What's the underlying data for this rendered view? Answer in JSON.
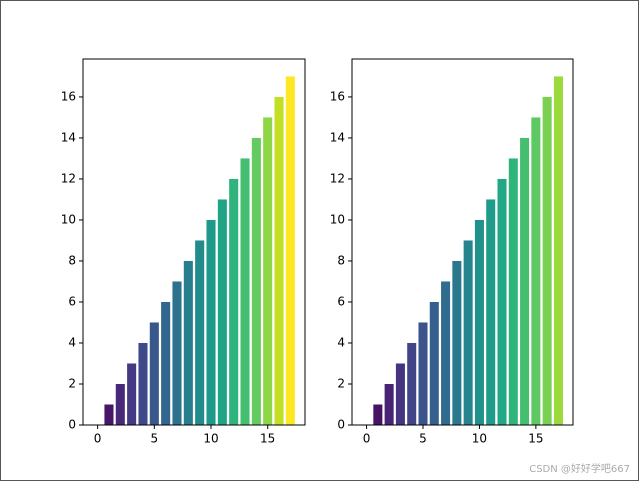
{
  "chart_data": [
    {
      "type": "bar",
      "x": [
        0,
        1,
        2,
        3,
        4,
        5,
        6,
        7,
        8,
        9,
        10,
        11,
        12,
        13,
        14,
        15,
        16,
        17
      ],
      "values": [
        0,
        1,
        2,
        3,
        4,
        5,
        6,
        7,
        8,
        9,
        10,
        11,
        12,
        13,
        14,
        15,
        16,
        17
      ],
      "colors": [
        "#440154",
        "#481668",
        "#482878",
        "#443983",
        "#3e4989",
        "#38588c",
        "#31668e",
        "#2c728e",
        "#277f8e",
        "#228c8d",
        "#1f998a",
        "#20a486",
        "#2eb37c",
        "#44bf70",
        "#63cb5f",
        "#8ed645",
        "#c2df23",
        "#fde725"
      ],
      "xlim": [
        -1.29,
        18.29
      ],
      "xticks": [
        0,
        5,
        10,
        15
      ],
      "ylim": [
        0,
        17.85
      ],
      "yticks": [
        0,
        2,
        4,
        6,
        8,
        10,
        12,
        14,
        16
      ]
    },
    {
      "type": "bar",
      "x": [
        0,
        1,
        2,
        3,
        4,
        5,
        6,
        7,
        8,
        9,
        10,
        11,
        12,
        13,
        14,
        15,
        16,
        17
      ],
      "values": [
        0,
        1,
        2,
        3,
        4,
        5,
        6,
        7,
        8,
        9,
        10,
        11,
        12,
        13,
        14,
        15,
        16,
        17
      ],
      "colors": [
        "#440154",
        "#471365",
        "#482475",
        "#463480",
        "#414487",
        "#3b528b",
        "#355f8d",
        "#2f6c8e",
        "#2a788e",
        "#25848e",
        "#21918c",
        "#1e9c89",
        "#22a884",
        "#2fb47c",
        "#44bf70",
        "#5ec962",
        "#7ad151",
        "#9bd93c"
      ],
      "xlim": [
        -1.29,
        18.29
      ],
      "xticks": [
        0,
        5,
        10,
        15
      ],
      "ylim": [
        0,
        17.85
      ],
      "yticks": [
        0,
        2,
        4,
        6,
        8,
        10,
        12,
        14,
        16
      ]
    }
  ],
  "watermark": "CSDN @好好学吧667"
}
